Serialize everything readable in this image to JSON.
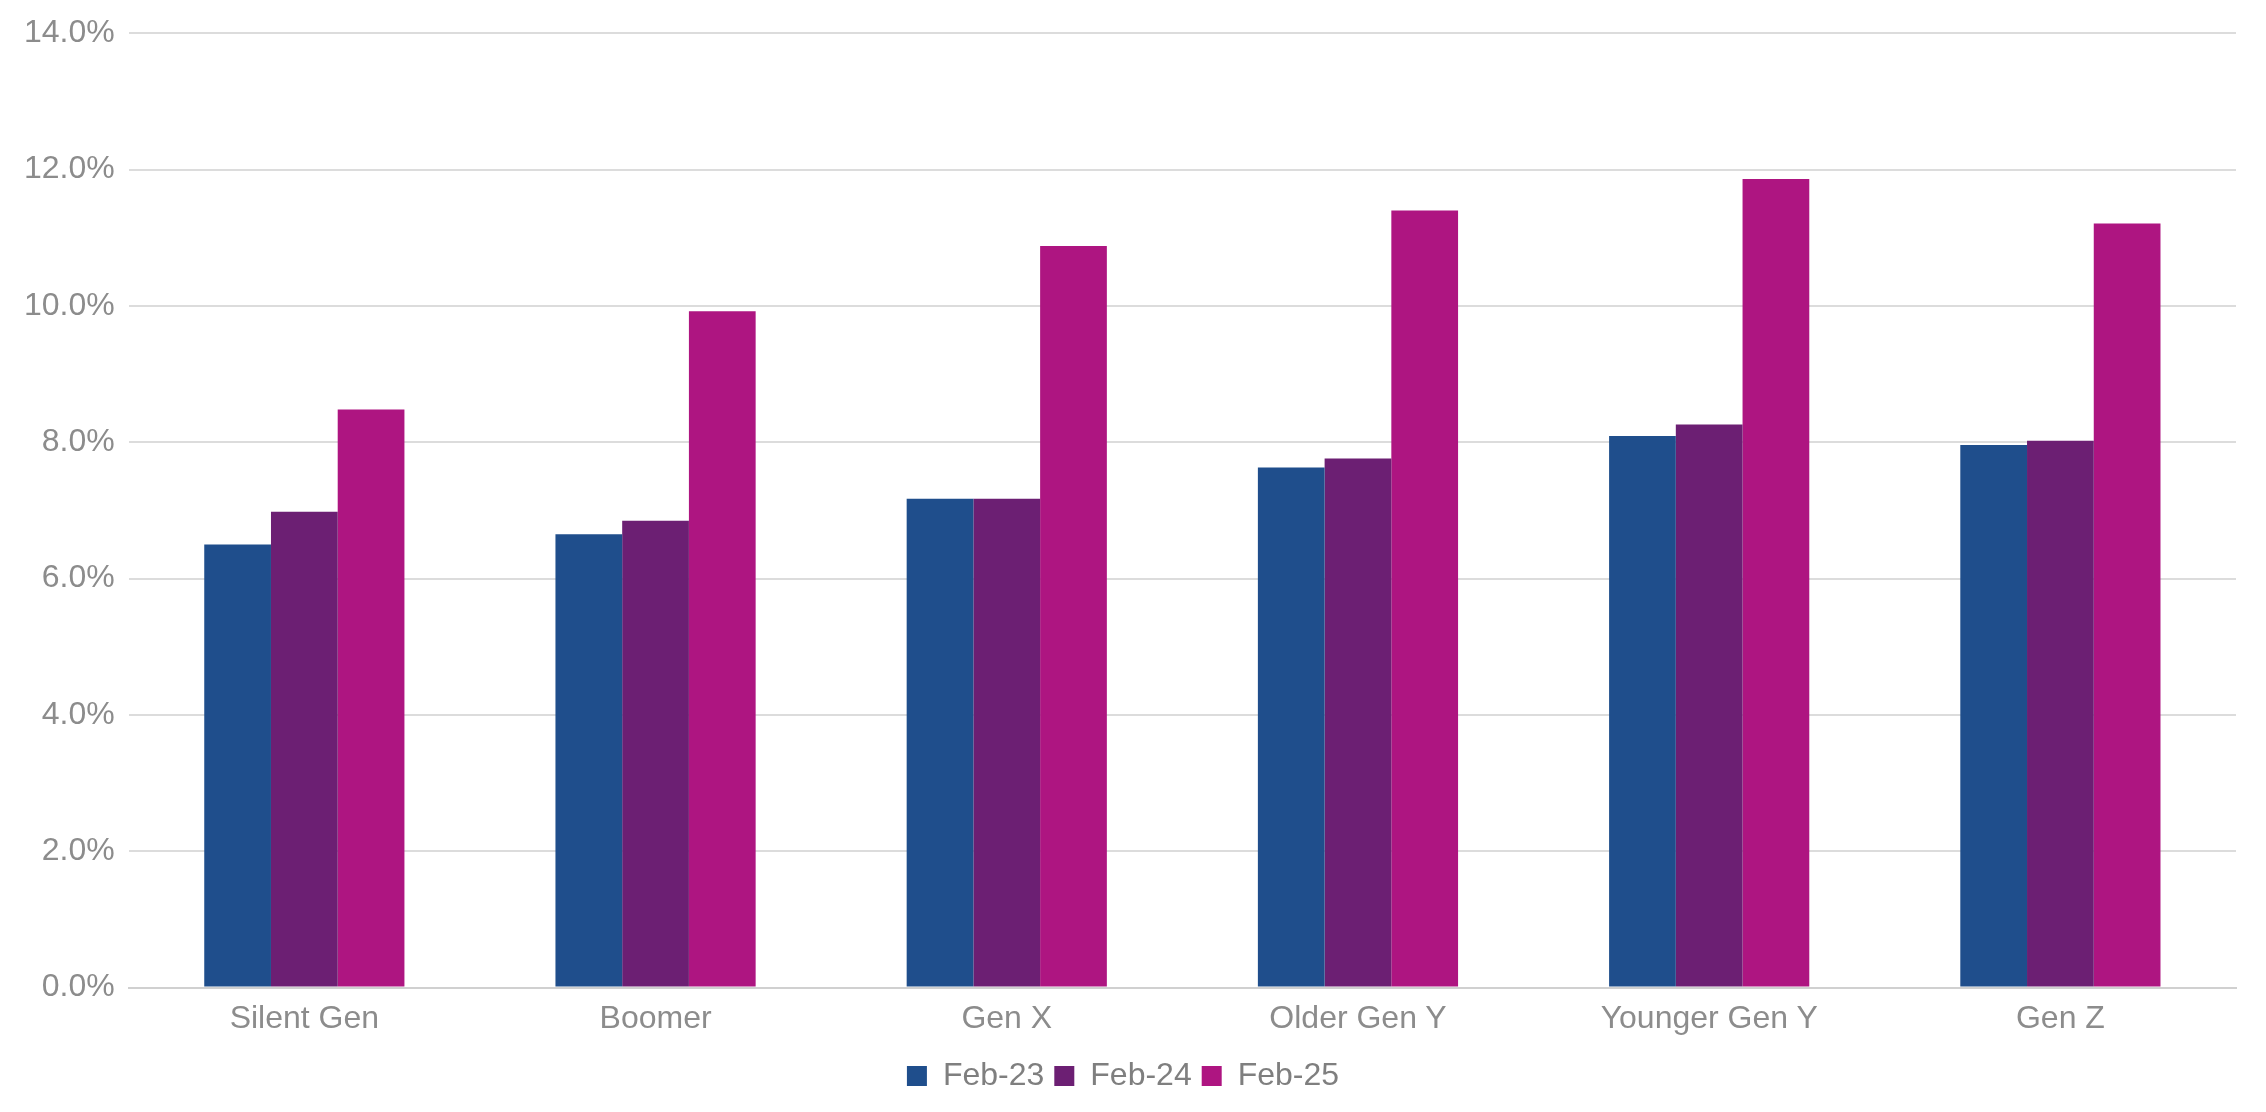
{
  "chart_data": {
    "type": "bar",
    "categories": [
      "Silent Gen",
      "Boomer",
      "Gen X",
      "Older Gen Y",
      "Younger Gen Y",
      "Gen Z"
    ],
    "series": [
      {
        "name": "Feb-23",
        "color": "#1f4e8c",
        "values": [
          6.5,
          6.65,
          7.17,
          7.63,
          8.09,
          7.96
        ]
      },
      {
        "name": "Feb-24",
        "color": "#6c1f73",
        "values": [
          6.98,
          6.85,
          7.17,
          7.76,
          8.26,
          8.02
        ]
      },
      {
        "name": "Feb-25",
        "color": "#ae1581",
        "values": [
          8.48,
          9.92,
          10.88,
          11.4,
          11.86,
          11.21
        ]
      }
    ],
    "ylim": [
      0,
      14
    ],
    "yticks": [
      {
        "value": 0,
        "label": "0.0%"
      },
      {
        "value": 2,
        "label": "2.0%"
      },
      {
        "value": 4,
        "label": "4.0%"
      },
      {
        "value": 6,
        "label": "6.0%"
      },
      {
        "value": 8,
        "label": "8.0%"
      },
      {
        "value": 10,
        "label": "10.0%"
      },
      {
        "value": 12,
        "label": "12.0%"
      },
      {
        "value": 14,
        "label": "14.0%"
      }
    ],
    "grid": "y",
    "legend": "bottom"
  }
}
